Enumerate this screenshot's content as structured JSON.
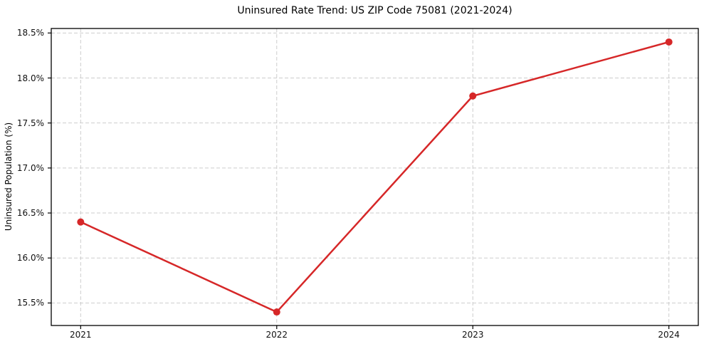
{
  "chart_data": {
    "type": "line",
    "title": "Uninsured Rate Trend: US ZIP Code 75081 (2021-2024)",
    "xlabel": "",
    "ylabel": "Uninsured Population (%)",
    "x": [
      2021,
      2022,
      2023,
      2024
    ],
    "series": [
      {
        "name": "Uninsured rate",
        "values": [
          16.4,
          15.4,
          17.8,
          18.4
        ],
        "color": "#d62728",
        "marker": "circle",
        "line_width": 2.5,
        "marker_radius": 5
      }
    ],
    "xlim": [
      2020.85,
      2024.15
    ],
    "ylim": [
      15.25,
      18.55
    ],
    "xticks": {
      "values": [
        2021,
        2022,
        2023,
        2024
      ],
      "labels": [
        "2021",
        "2022",
        "2023",
        "2024"
      ]
    },
    "yticks": {
      "values": [
        15.5,
        16.0,
        16.5,
        17.0,
        17.5,
        18.0,
        18.5
      ],
      "labels": [
        "15.5%",
        "16.0%",
        "16.5%",
        "17.0%",
        "17.5%",
        "18.0%",
        "18.5%"
      ]
    },
    "grid": true,
    "grid_style": "dashed",
    "grid_color": "#cdcdcd",
    "axis_color": "#000000",
    "legend_position": "none",
    "background_color": "#ffffff"
  }
}
